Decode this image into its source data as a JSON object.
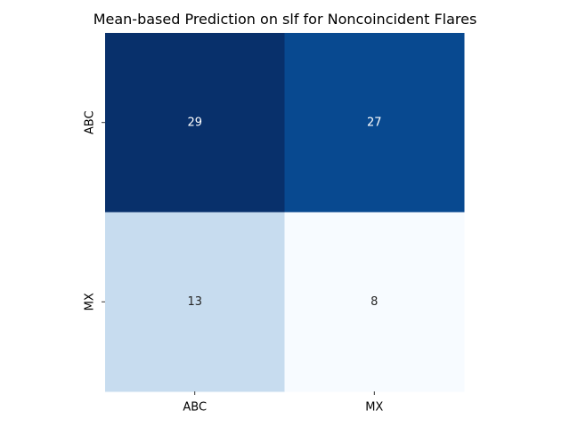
{
  "chart_data": {
    "type": "heatmap",
    "title": "Mean-based Prediction on slf for Noncoincident Flares",
    "xlabel": "",
    "ylabel": "",
    "x_categories": [
      "ABC",
      "MX"
    ],
    "y_categories": [
      "ABC",
      "MX"
    ],
    "values": [
      [
        29,
        27
      ],
      [
        13,
        8
      ]
    ],
    "colormap": "Blues",
    "value_range": [
      8,
      29
    ],
    "colorbar": false,
    "cell_text_colors": [
      [
        "#ffffff",
        "#ffffff"
      ],
      [
        "#262626",
        "#262626"
      ]
    ],
    "cell_colors": [
      [
        "#08306b",
        "#084990"
      ],
      [
        "#c7dcef",
        "#f7fbff"
      ]
    ]
  }
}
